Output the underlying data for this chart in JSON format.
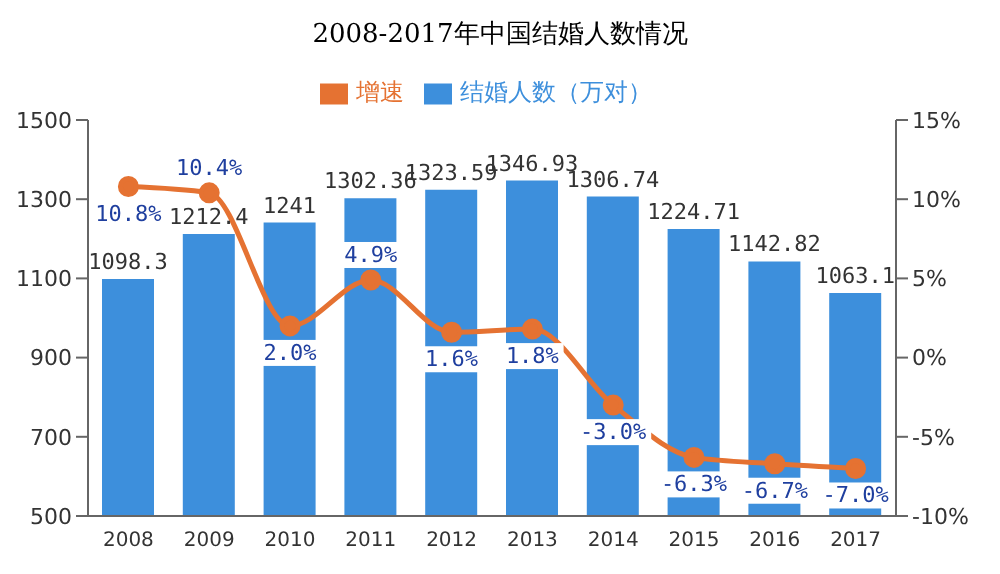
{
  "chart_data": {
    "type": "bar",
    "title": "2008-2017年中国结婚人数情况",
    "categories": [
      "2008",
      "2009",
      "2010",
      "2011",
      "2012",
      "2013",
      "2014",
      "2015",
      "2016",
      "2017"
    ],
    "series": [
      {
        "name": "结婚人数（万对）",
        "color": "#3d8fdc",
        "values": [
          1098.3,
          1212.4,
          1241,
          1302.36,
          1323.59,
          1346.93,
          1306.74,
          1224.71,
          1142.82,
          1063.1
        ]
      },
      {
        "name": "增速",
        "type": "line",
        "axis": "y2",
        "color": "#e57232",
        "values": [
          10.8,
          10.4,
          2.0,
          4.9,
          1.6,
          1.8,
          -3.0,
          -6.3,
          -6.7,
          -7.0
        ],
        "value_labels": [
          "10.8%",
          "10.4%",
          "2.0%",
          "4.9%",
          "1.6%",
          "1.8%",
          "-3.0%",
          "-6.3%",
          "-6.7%",
          "-7.0%"
        ],
        "marker": "circle"
      }
    ],
    "ylim": [
      500,
      1500
    ],
    "yticks": [
      500,
      700,
      900,
      1100,
      1300,
      1500
    ],
    "y2lim": [
      -10,
      15
    ],
    "y2ticks": [
      {
        "value": -10,
        "label": "-10%"
      },
      {
        "value": -5,
        "label": "-5%"
      },
      {
        "value": 0,
        "label": "0%"
      },
      {
        "value": 5,
        "label": "5%"
      },
      {
        "value": 10,
        "label": "10%"
      },
      {
        "value": 15,
        "label": "15%"
      }
    ],
    "data_labels": true,
    "legend": "top",
    "grid": false
  }
}
